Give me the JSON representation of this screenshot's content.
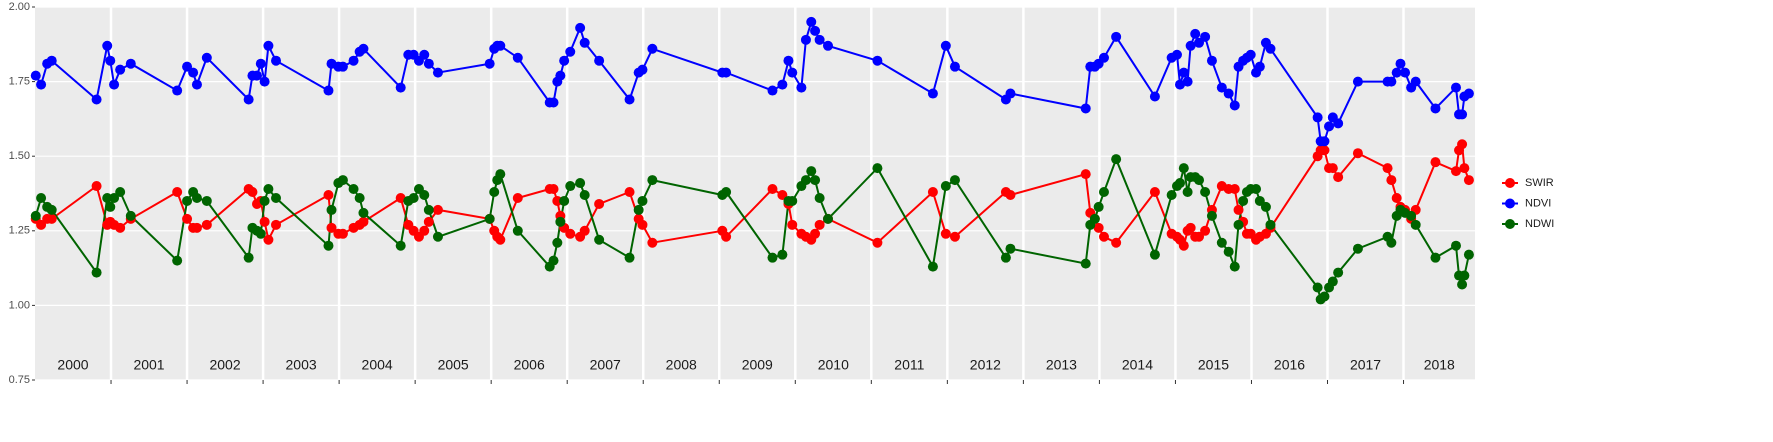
{
  "chart_data": {
    "type": "line",
    "x": [
      2000.01,
      2000.08,
      2000.16,
      2000.22,
      2000.81,
      2000.95,
      2000.99,
      2001.04,
      2001.12,
      2001.26,
      2001.87,
      2002.0,
      2002.08,
      2002.13,
      2002.26,
      2002.81,
      2002.86,
      2002.92,
      2002.97,
      2003.02,
      2003.07,
      2003.17,
      2003.86,
      2003.9,
      2003.99,
      2004.05,
      2004.19,
      2004.27,
      2004.32,
      2004.81,
      2004.91,
      2004.98,
      2005.05,
      2005.12,
      2005.18,
      2005.3,
      2005.98,
      2006.04,
      2006.08,
      2006.12,
      2006.35,
      2006.77,
      2006.82,
      2006.87,
      2006.91,
      2006.96,
      2007.04,
      2007.17,
      2007.23,
      2007.42,
      2007.82,
      2007.94,
      2007.99,
      2008.12,
      2009.04,
      2009.09,
      2009.7,
      2009.83,
      2009.91,
      2009.96,
      2010.08,
      2010.14,
      2010.21,
      2010.26,
      2010.32,
      2010.43,
      2011.08,
      2011.81,
      2011.98,
      2012.1,
      2012.77,
      2012.83,
      2013.82,
      2013.88,
      2013.94,
      2013.99,
      2014.06,
      2014.22,
      2014.73,
      2014.95,
      2015.02,
      2015.06,
      2015.11,
      2015.16,
      2015.2,
      2015.26,
      2015.31,
      2015.39,
      2015.48,
      2015.61,
      2015.7,
      2015.78,
      2015.83,
      2015.89,
      2015.94,
      2015.99,
      2016.06,
      2016.11,
      2016.19,
      2016.25,
      2016.87,
      2016.91,
      2016.96,
      2017.02,
      2017.07,
      2017.14,
      2017.4,
      2017.79,
      2017.84,
      2017.91,
      2017.96,
      2018.02,
      2018.1,
      2018.16,
      2018.42,
      2018.69,
      2018.73,
      2018.77,
      2018.8,
      2018.86
    ],
    "series": [
      {
        "name": "SWIR",
        "color": "#ff0000",
        "values": [
          1.29,
          1.27,
          1.29,
          1.29,
          1.4,
          1.27,
          1.28,
          1.27,
          1.26,
          1.29,
          1.38,
          1.29,
          1.26,
          1.26,
          1.27,
          1.39,
          1.38,
          1.34,
          1.35,
          1.28,
          1.22,
          1.27,
          1.37,
          1.26,
          1.24,
          1.24,
          1.26,
          1.27,
          1.28,
          1.36,
          1.27,
          1.25,
          1.23,
          1.25,
          1.28,
          1.32,
          1.29,
          1.25,
          1.23,
          1.22,
          1.36,
          1.39,
          1.39,
          1.35,
          1.3,
          1.26,
          1.24,
          1.23,
          1.25,
          1.34,
          1.38,
          1.29,
          1.27,
          1.21,
          1.25,
          1.23,
          1.39,
          1.37,
          1.34,
          1.27,
          1.24,
          1.23,
          1.22,
          1.24,
          1.27,
          1.29,
          1.21,
          1.38,
          1.24,
          1.23,
          1.38,
          1.37,
          1.44,
          1.31,
          1.29,
          1.26,
          1.23,
          1.21,
          1.38,
          1.24,
          1.23,
          1.22,
          1.2,
          1.25,
          1.26,
          1.23,
          1.23,
          1.25,
          1.32,
          1.4,
          1.39,
          1.39,
          1.32,
          1.28,
          1.24,
          1.24,
          1.22,
          1.23,
          1.24,
          1.26,
          1.5,
          1.52,
          1.52,
          1.46,
          1.46,
          1.43,
          1.51,
          1.46,
          1.42,
          1.36,
          1.33,
          1.32,
          1.29,
          1.32,
          1.48,
          1.45,
          1.52,
          1.54,
          1.46,
          1.42
        ]
      },
      {
        "name": "NDVI",
        "color": "#0000ff",
        "values": [
          1.77,
          1.74,
          1.81,
          1.82,
          1.69,
          1.87,
          1.82,
          1.74,
          1.79,
          1.81,
          1.72,
          1.8,
          1.78,
          1.74,
          1.83,
          1.69,
          1.77,
          1.77,
          1.81,
          1.75,
          1.87,
          1.82,
          1.72,
          1.81,
          1.8,
          1.8,
          1.82,
          1.85,
          1.86,
          1.73,
          1.84,
          1.84,
          1.82,
          1.84,
          1.81,
          1.78,
          1.81,
          1.86,
          1.87,
          1.87,
          1.83,
          1.68,
          1.68,
          1.75,
          1.77,
          1.82,
          1.85,
          1.93,
          1.88,
          1.82,
          1.69,
          1.78,
          1.79,
          1.86,
          1.78,
          1.78,
          1.72,
          1.74,
          1.82,
          1.78,
          1.73,
          1.89,
          1.95,
          1.92,
          1.89,
          1.87,
          1.82,
          1.71,
          1.87,
          1.8,
          1.69,
          1.71,
          1.66,
          1.8,
          1.8,
          1.81,
          1.83,
          1.9,
          1.7,
          1.83,
          1.84,
          1.74,
          1.78,
          1.75,
          1.87,
          1.91,
          1.88,
          1.9,
          1.82,
          1.73,
          1.71,
          1.67,
          1.8,
          1.82,
          1.83,
          1.84,
          1.78,
          1.8,
          1.88,
          1.86,
          1.63,
          1.55,
          1.55,
          1.6,
          1.63,
          1.61,
          1.75,
          1.75,
          1.75,
          1.78,
          1.81,
          1.78,
          1.73,
          1.75,
          1.66,
          1.73,
          1.64,
          1.64,
          1.7,
          1.71
        ]
      },
      {
        "name": "NDWI",
        "color": "#006400",
        "values": [
          1.3,
          1.36,
          1.33,
          1.32,
          1.11,
          1.36,
          1.33,
          1.36,
          1.38,
          1.3,
          1.15,
          1.35,
          1.38,
          1.36,
          1.35,
          1.16,
          1.26,
          1.25,
          1.24,
          1.35,
          1.39,
          1.36,
          1.2,
          1.32,
          1.41,
          1.42,
          1.39,
          1.36,
          1.31,
          1.2,
          1.35,
          1.36,
          1.39,
          1.37,
          1.32,
          1.23,
          1.29,
          1.38,
          1.42,
          1.44,
          1.25,
          1.13,
          1.15,
          1.21,
          1.28,
          1.35,
          1.4,
          1.41,
          1.37,
          1.22,
          1.16,
          1.32,
          1.35,
          1.42,
          1.37,
          1.38,
          1.16,
          1.17,
          1.35,
          1.35,
          1.4,
          1.42,
          1.45,
          1.42,
          1.36,
          1.29,
          1.46,
          1.13,
          1.4,
          1.42,
          1.16,
          1.19,
          1.14,
          1.27,
          1.29,
          1.33,
          1.38,
          1.49,
          1.17,
          1.37,
          1.4,
          1.41,
          1.46,
          1.38,
          1.43,
          1.43,
          1.42,
          1.38,
          1.3,
          1.21,
          1.18,
          1.13,
          1.27,
          1.35,
          1.38,
          1.39,
          1.39,
          1.35,
          1.33,
          1.27,
          1.06,
          1.02,
          1.03,
          1.06,
          1.08,
          1.11,
          1.19,
          1.23,
          1.21,
          1.3,
          1.32,
          1.31,
          1.3,
          1.27,
          1.16,
          1.2,
          1.1,
          1.07,
          1.1,
          1.17
        ]
      }
    ],
    "xlim": [
      2000,
      2018.94
    ],
    "xticks": [
      2001,
      2002,
      2003,
      2004,
      2005,
      2006,
      2007,
      2008,
      2009,
      2010,
      2011,
      2012,
      2013,
      2014,
      2015,
      2016,
      2017,
      2018
    ],
    "year_labels": [
      "2000",
      "2001",
      "2002",
      "2003",
      "2004",
      "2005",
      "2006",
      "2007",
      "2008",
      "2009",
      "2010",
      "2011",
      "2012",
      "2013",
      "2014",
      "2015",
      "2016",
      "2017",
      "2018"
    ],
    "ylim": [
      0.75,
      2.0
    ],
    "yticks": [
      0.75,
      {
        "value": 1.0,
        "label": "1.00"
      },
      1.25,
      {
        "value": 1.5,
        "label": "1.50"
      },
      1.75,
      {
        "value": 2.0,
        "label": "2.00"
      }
    ],
    "grid": true,
    "legend": "right"
  }
}
